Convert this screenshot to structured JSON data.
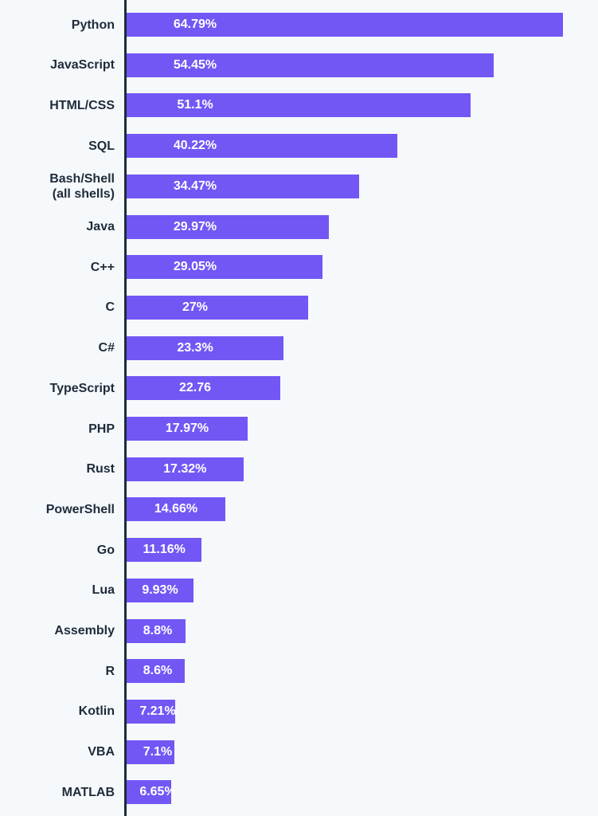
{
  "colors": {
    "bar": "#7257f5",
    "axis": "#1e2b3a",
    "background": "#f6f9fc",
    "label_text": "#1e2b3a",
    "value_text": "#ffffff"
  },
  "chart_data": {
    "type": "bar",
    "orientation": "horizontal",
    "title": "",
    "xlabel": "",
    "ylabel": "",
    "xlim": [
      0,
      67
    ],
    "grid": false,
    "legend": "none",
    "categories": [
      [
        "Python"
      ],
      [
        "JavaScript"
      ],
      [
        "HTML/CSS"
      ],
      [
        "SQL"
      ],
      [
        "Bash/Shell",
        "(all shells)"
      ],
      [
        "Java"
      ],
      [
        "C++"
      ],
      [
        "C"
      ],
      [
        "C#"
      ],
      [
        "TypeScript"
      ],
      [
        "PHP"
      ],
      [
        "Rust"
      ],
      [
        "PowerShell"
      ],
      [
        "Go"
      ],
      [
        "Lua"
      ],
      [
        "Assembly"
      ],
      [
        "R"
      ],
      [
        "Kotlin"
      ],
      [
        "VBA"
      ],
      [
        "MATLAB"
      ]
    ],
    "values": [
      64.79,
      54.45,
      51.1,
      40.22,
      34.47,
      29.97,
      29.05,
      27,
      23.3,
      22.76,
      17.97,
      17.32,
      14.66,
      11.16,
      9.93,
      8.8,
      8.6,
      7.21,
      7.1,
      6.65
    ],
    "value_labels": [
      "64.79%",
      "54.45%",
      "51.1%",
      "40.22%",
      "34.47%",
      "29.97%",
      "29.05%",
      "27%",
      "23.3%",
      "22.76",
      "17.97%",
      "17.32%",
      "14.66%",
      "11.16%",
      "9.93%",
      "8.8%",
      "8.6%",
      "7.21%",
      "7.1%",
      "6.65%"
    ]
  }
}
